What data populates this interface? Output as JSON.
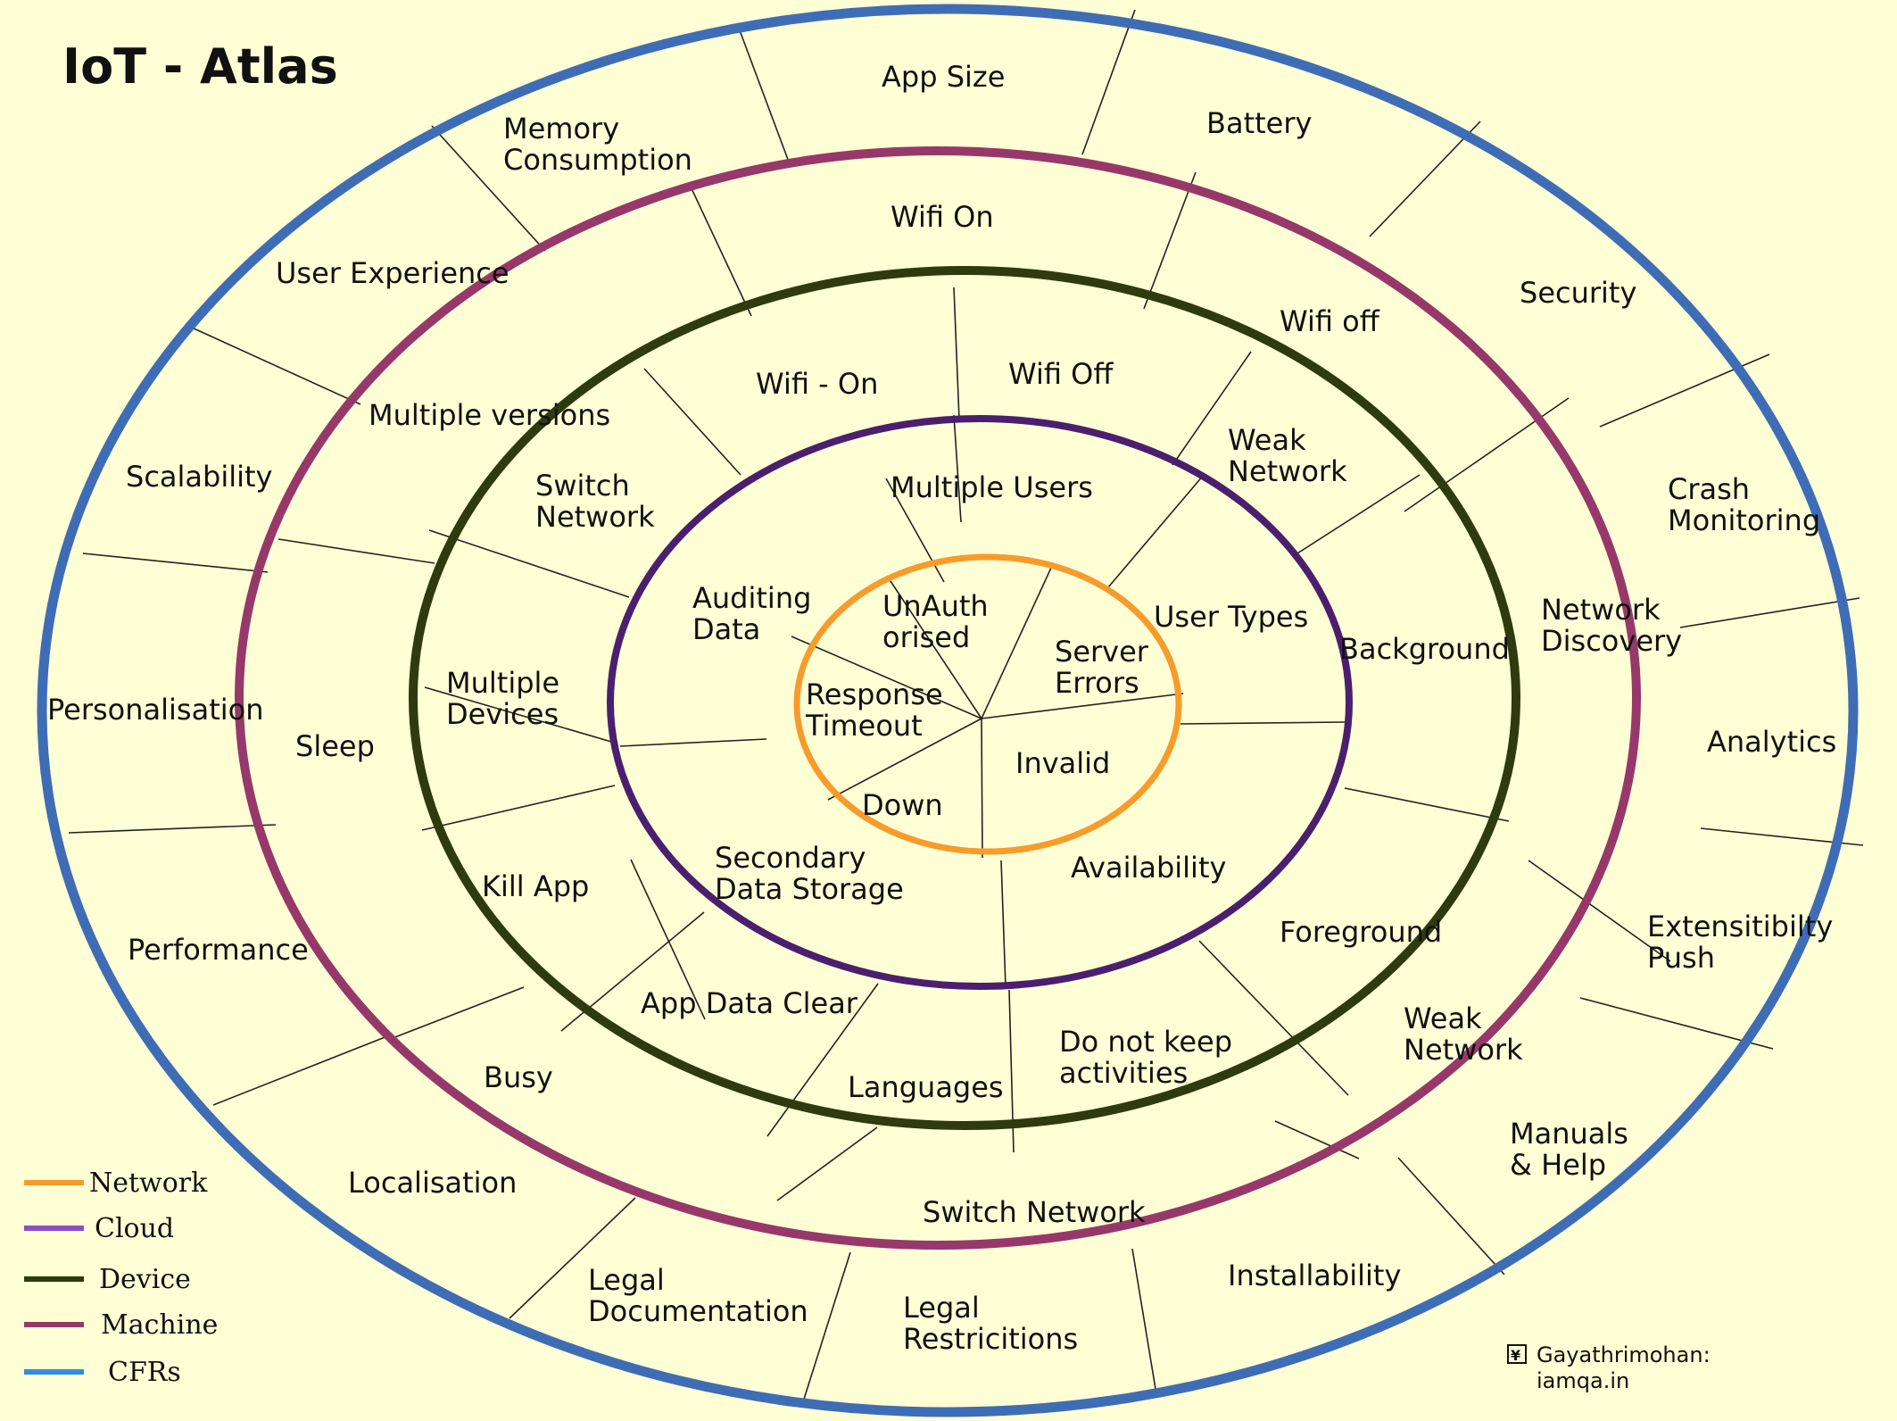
{
  "title": "IoT - Atlas",
  "colors": {
    "background": "#ffffd6",
    "title": "#e81fc4",
    "network": "#f79b2b",
    "cloud": "#4b1f6e",
    "device": "#2f3a0e",
    "machine": "#97386a",
    "cfrs": "#3f6db5",
    "legend_cloud": "#8a4fc8",
    "legend_cfrs": "#2f8ee0",
    "divider": "#222222"
  },
  "legend": [
    {
      "label": "Network",
      "color_key": "network"
    },
    {
      "label": "Cloud",
      "color_key": "legend_cloud"
    },
    {
      "label": "Device",
      "color_key": "device"
    },
    {
      "label": "Machine",
      "color_key": "machine"
    },
    {
      "label": "CFRs",
      "color_key": "legend_cfrs"
    }
  ],
  "rings": {
    "network": [
      "UnAuth\norised",
      "Server\nErrors",
      "Invalid",
      "Down",
      "Response\nTimeout"
    ],
    "cloud": [
      "Multiple Users",
      "User Types",
      "Availability",
      "Secondary\nData Storage",
      "Auditing\nData"
    ],
    "device": [
      "Wifi - On",
      "Wifi Off",
      "Weak\nNetwork",
      "Background",
      "Foreground",
      "Do not keep\nactivities",
      "Languages",
      "App Data Clear",
      "Kill App",
      "Multiple\nDevices",
      "Switch\nNetwork"
    ],
    "machine": [
      "Wifi On",
      "Wifi off",
      "Network\nDiscovery",
      "Weak\nNetwork",
      "Switch Network",
      "Busy",
      "Sleep",
      "Multiple versions"
    ],
    "cfrs": [
      "App Size",
      "Battery",
      "Security",
      "Crash\nMonitoring",
      "Analytics",
      "Extensitibilty\nPush",
      "Manuals\n& Help",
      "Installability",
      "Legal\nRestricitions",
      "Legal\nDocumentation",
      "Localisation",
      "Performance",
      "Personalisation",
      "Scalability",
      "User  Experience",
      "Memory\nConsumption"
    ]
  },
  "credit": {
    "icon": "copyright-box-icon",
    "line1": "Gayathrimohan:",
    "line2": "iamqa.in"
  }
}
